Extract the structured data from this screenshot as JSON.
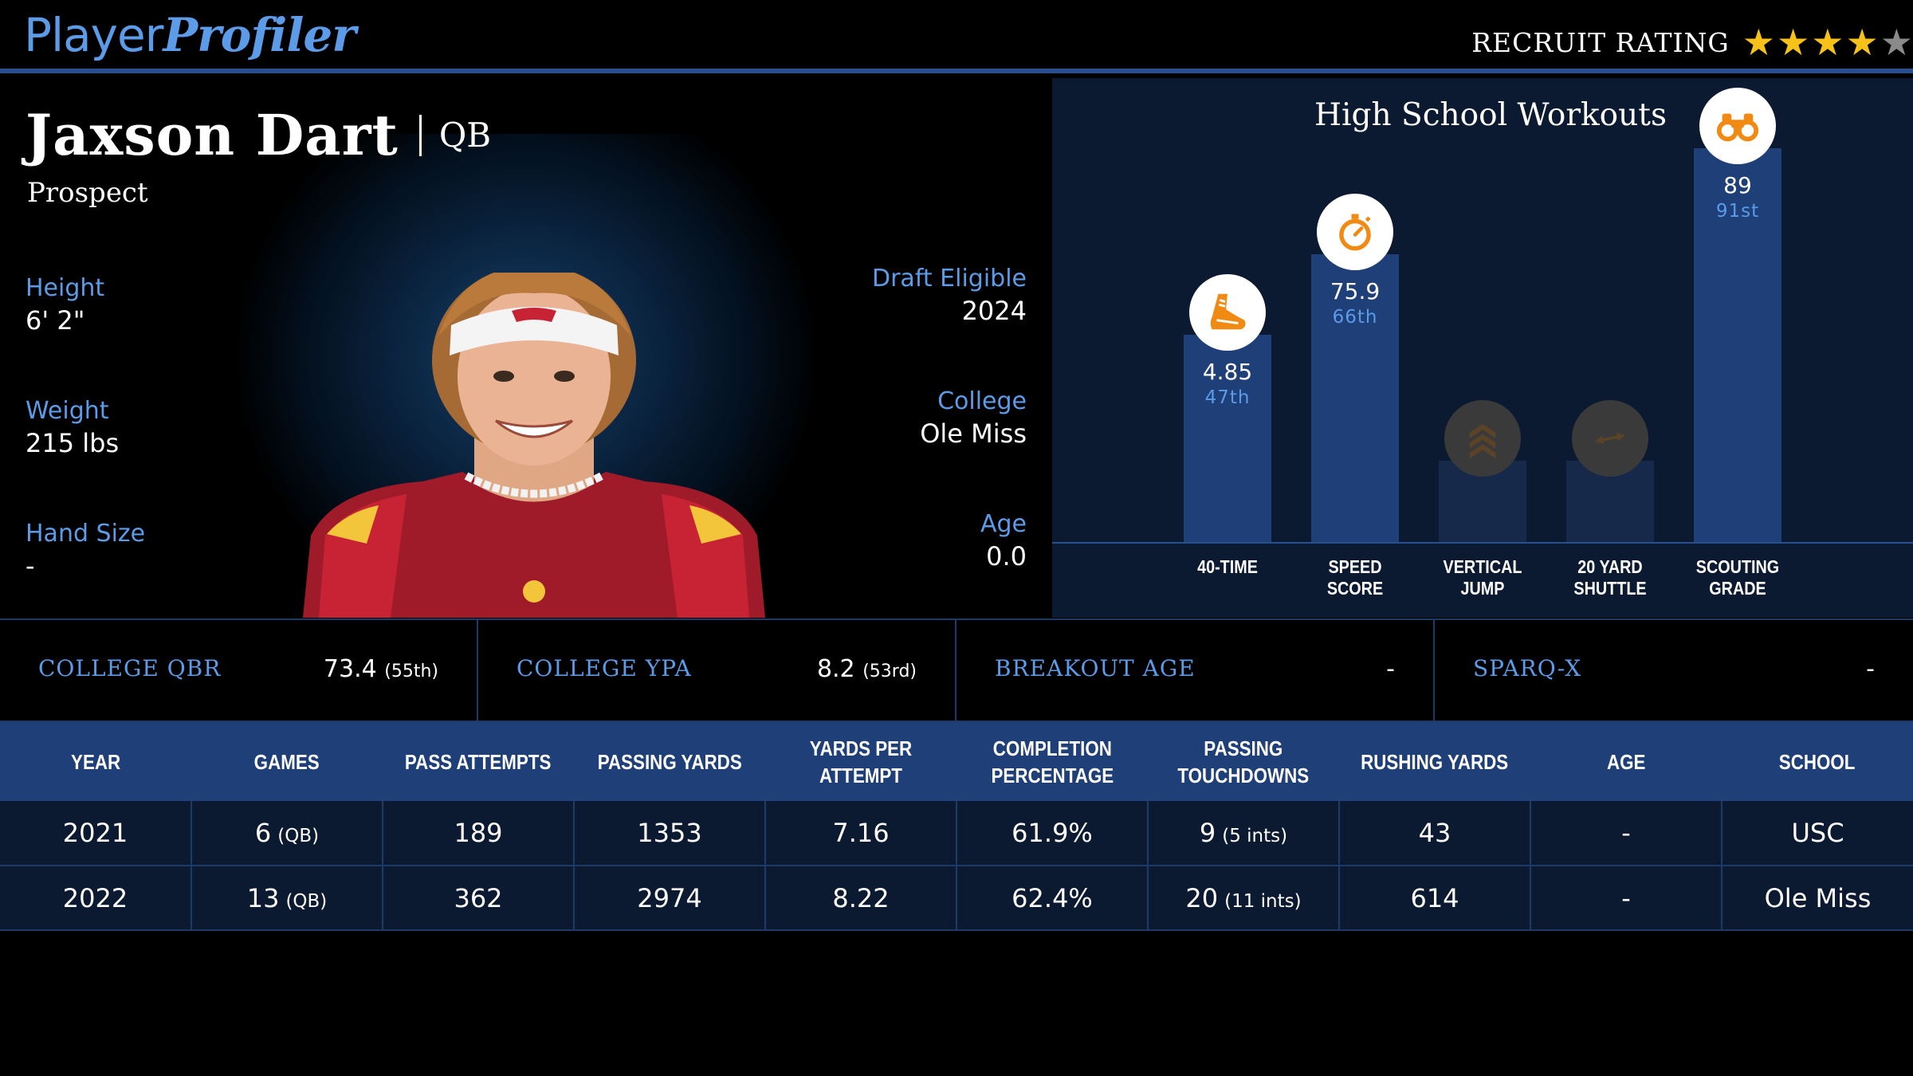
{
  "brand": {
    "part1": "Player",
    "part2": "Profiler"
  },
  "recruit": {
    "label": "RECRUIT RATING",
    "stars": 4,
    "max_stars": 5
  },
  "player": {
    "name": "Jaxson Dart",
    "position": "QB",
    "subtitle": "Prospect",
    "height": {
      "label": "Height",
      "value": "6' 2\""
    },
    "weight": {
      "label": "Weight",
      "value": "215 lbs"
    },
    "hand_size": {
      "label": "Hand Size",
      "value": "-"
    },
    "draft_eligible": {
      "label": "Draft Eligible",
      "value": "2024"
    },
    "college": {
      "label": "College",
      "value": "Ole Miss"
    },
    "age": {
      "label": "Age",
      "value": "0.0"
    }
  },
  "workouts": {
    "title": "High School Workouts",
    "items": [
      {
        "label_line1": "40-TIME",
        "label_line2": "",
        "value": "4.85",
        "percentile": "47th",
        "percentile_num": 47,
        "icon": "shoe-icon",
        "has_value": true
      },
      {
        "label_line1": "SPEED",
        "label_line2": "SCORE",
        "value": "75.9",
        "percentile": "66th",
        "percentile_num": 66,
        "icon": "stopwatch-icon",
        "has_value": true
      },
      {
        "label_line1": "VERTICAL",
        "label_line2": "JUMP",
        "value": "",
        "percentile": "",
        "percentile_num": null,
        "icon": "chevrons-up-icon",
        "has_value": false
      },
      {
        "label_line1": "20 YARD",
        "label_line2": "SHUTTLE",
        "value": "",
        "percentile": "",
        "percentile_num": null,
        "icon": "shuttle-arrows-icon",
        "has_value": false
      },
      {
        "label_line1": "SCOUTING",
        "label_line2": "GRADE",
        "value": "89",
        "percentile": "91st",
        "percentile_num": 91,
        "icon": "binoculars-icon",
        "has_value": true
      }
    ]
  },
  "metrics": [
    {
      "label": "COLLEGE QBR",
      "value": "73.4",
      "sub": "(55th)"
    },
    {
      "label": "COLLEGE YPA",
      "value": "8.2",
      "sub": "(53rd)"
    },
    {
      "label": "BREAKOUT AGE",
      "value": "-",
      "sub": ""
    },
    {
      "label": "SPARQ-X",
      "value": "-",
      "sub": ""
    }
  ],
  "table": {
    "headers": [
      {
        "l1": "YEAR",
        "l2": ""
      },
      {
        "l1": "GAMES",
        "l2": ""
      },
      {
        "l1": "PASS ATTEMPTS",
        "l2": ""
      },
      {
        "l1": "PASSING YARDS",
        "l2": ""
      },
      {
        "l1": "YARDS PER ATTEMPT",
        "l2": ""
      },
      {
        "l1": "COMPLETION",
        "l2": "PERCENTAGE"
      },
      {
        "l1": "PASSING",
        "l2": "TOUCHDOWNS"
      },
      {
        "l1": "RUSHING YARDS",
        "l2": ""
      },
      {
        "l1": "AGE",
        "l2": ""
      },
      {
        "l1": "SCHOOL",
        "l2": ""
      }
    ],
    "rows": [
      {
        "year": "2021",
        "games": "6",
        "games_sub": "(QB)",
        "attempts": "189",
        "yards": "1353",
        "ypa": "7.16",
        "comp": "61.9%",
        "td": "9",
        "td_sub": "(5 ints)",
        "rush": "43",
        "age": "-",
        "school": "USC"
      },
      {
        "year": "2022",
        "games": "13",
        "games_sub": "(QB)",
        "attempts": "362",
        "yards": "2974",
        "ypa": "8.22",
        "comp": "62.4%",
        "td": "20",
        "td_sub": "(11 ints)",
        "rush": "614",
        "age": "-",
        "school": "Ole Miss"
      }
    ]
  },
  "colors": {
    "accent": "#5b9be8",
    "bar": "#1e3f78",
    "panel": "#0b1a30",
    "star": "#f6c21a",
    "icon_orange": "#f08a12"
  }
}
